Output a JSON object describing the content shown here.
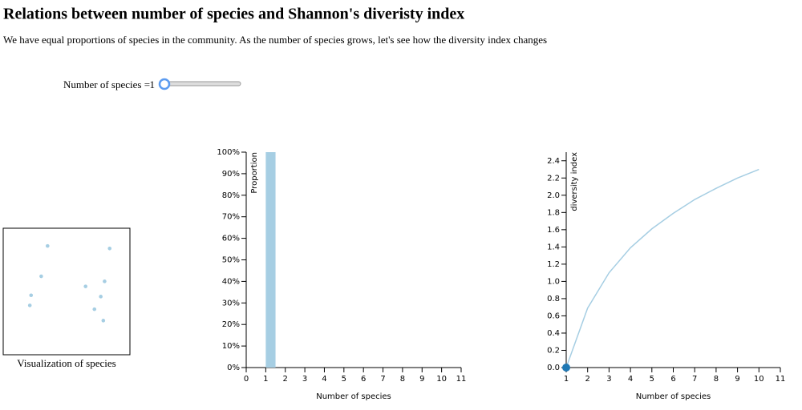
{
  "title": "Relations between number of species and Shannon's diveristy index",
  "description": "We have equal proportions of species in the community. As the number of species grows, let's see how the diversity index changes",
  "slider": {
    "label": "Number of species =",
    "value": 1
  },
  "chart_data": [
    {
      "type": "scatter",
      "title": "Visualization of species",
      "color": "#a6cee3",
      "x": [
        35,
        84,
        30,
        80,
        65,
        22,
        77,
        21,
        72,
        79
      ],
      "values": [
        86,
        84,
        62,
        58,
        54,
        47,
        46,
        39,
        36,
        27
      ],
      "xlim": [
        0,
        100
      ],
      "ylim": [
        0,
        100
      ]
    },
    {
      "type": "bar",
      "xlabel": "Number of species",
      "ylabel": "Proportion",
      "color": "#a6cee3",
      "x": [
        1
      ],
      "values": [
        100
      ],
      "xlim": [
        0,
        11
      ],
      "xticks": [
        0,
        1,
        2,
        3,
        4,
        5,
        6,
        7,
        8,
        9,
        10,
        11
      ],
      "ylim": [
        0,
        100
      ],
      "yticks": [
        {
          "value": 0,
          "label": "0%"
        },
        {
          "value": 10,
          "label": "10%"
        },
        {
          "value": 20,
          "label": "20%"
        },
        {
          "value": 30,
          "label": "30%"
        },
        {
          "value": 40,
          "label": "40%"
        },
        {
          "value": 50,
          "label": "50%"
        },
        {
          "value": 60,
          "label": "60%"
        },
        {
          "value": 70,
          "label": "70%"
        },
        {
          "value": 80,
          "label": "80%"
        },
        {
          "value": 90,
          "label": "90%"
        },
        {
          "value": 100,
          "label": "100%"
        }
      ]
    },
    {
      "type": "line",
      "xlabel": "Number of species",
      "ylabel": "diversity index",
      "color": "#a6cee3",
      "x": [
        1,
        2,
        3,
        4,
        5,
        6,
        7,
        8,
        9,
        10
      ],
      "values": [
        0,
        0.69,
        1.1,
        1.39,
        1.61,
        1.79,
        1.95,
        2.08,
        2.2,
        2.3
      ],
      "current": {
        "x": 1,
        "y": 0,
        "color": "#1f78b4"
      },
      "xlim": [
        1,
        11
      ],
      "xticks": [
        1,
        2,
        3,
        4,
        5,
        6,
        7,
        8,
        9,
        10,
        11
      ],
      "ylim": [
        0,
        2.5
      ],
      "yticks": [
        {
          "value": 0,
          "label": "0.0"
        },
        {
          "value": 0.2,
          "label": "0.2"
        },
        {
          "value": 0.4,
          "label": "0.4"
        },
        {
          "value": 0.6,
          "label": "0.6"
        },
        {
          "value": 0.8,
          "label": "0.8"
        },
        {
          "value": 1,
          "label": "1.0"
        },
        {
          "value": 1.2,
          "label": "1.2"
        },
        {
          "value": 1.4,
          "label": "1.4"
        },
        {
          "value": 1.6,
          "label": "1.6"
        },
        {
          "value": 1.8,
          "label": "1.8"
        },
        {
          "value": 2,
          "label": "2.0"
        },
        {
          "value": 2.2,
          "label": "2.2"
        },
        {
          "value": 2.4,
          "label": "2.4"
        }
      ]
    }
  ]
}
